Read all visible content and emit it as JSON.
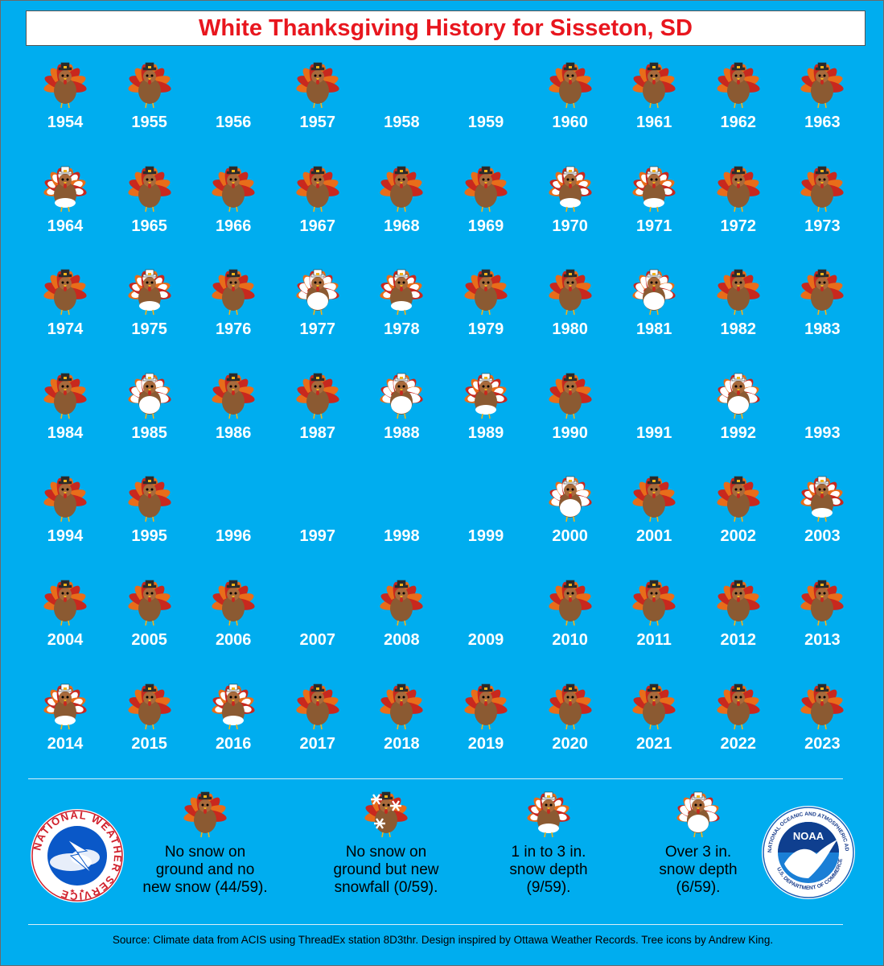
{
  "title": "White Thanksgiving History for Sisseton, SD",
  "years": [
    {
      "year": "1954",
      "cat": "none"
    },
    {
      "year": "1955",
      "cat": "none"
    },
    {
      "year": "1956",
      "cat": ""
    },
    {
      "year": "1957",
      "cat": "none"
    },
    {
      "year": "1958",
      "cat": ""
    },
    {
      "year": "1959",
      "cat": ""
    },
    {
      "year": "1960",
      "cat": "none"
    },
    {
      "year": "1961",
      "cat": "none"
    },
    {
      "year": "1962",
      "cat": "none"
    },
    {
      "year": "1963",
      "cat": "none"
    },
    {
      "year": "1964",
      "cat": "light"
    },
    {
      "year": "1965",
      "cat": "none"
    },
    {
      "year": "1966",
      "cat": "none"
    },
    {
      "year": "1967",
      "cat": "none"
    },
    {
      "year": "1968",
      "cat": "none"
    },
    {
      "year": "1969",
      "cat": "none"
    },
    {
      "year": "1970",
      "cat": "light"
    },
    {
      "year": "1971",
      "cat": "light"
    },
    {
      "year": "1972",
      "cat": "none"
    },
    {
      "year": "1973",
      "cat": "none"
    },
    {
      "year": "1974",
      "cat": "none"
    },
    {
      "year": "1975",
      "cat": "light"
    },
    {
      "year": "1976",
      "cat": "none"
    },
    {
      "year": "1977",
      "cat": "heavy"
    },
    {
      "year": "1978",
      "cat": "light"
    },
    {
      "year": "1979",
      "cat": "none"
    },
    {
      "year": "1980",
      "cat": "none"
    },
    {
      "year": "1981",
      "cat": "heavy"
    },
    {
      "year": "1982",
      "cat": "none"
    },
    {
      "year": "1983",
      "cat": "none"
    },
    {
      "year": "1984",
      "cat": "none"
    },
    {
      "year": "1985",
      "cat": "heavy"
    },
    {
      "year": "1986",
      "cat": "none"
    },
    {
      "year": "1987",
      "cat": "none"
    },
    {
      "year": "1988",
      "cat": "heavy"
    },
    {
      "year": "1989",
      "cat": "light"
    },
    {
      "year": "1990",
      "cat": "none"
    },
    {
      "year": "1991",
      "cat": ""
    },
    {
      "year": "1992",
      "cat": "heavy"
    },
    {
      "year": "1993",
      "cat": ""
    },
    {
      "year": "1994",
      "cat": "none"
    },
    {
      "year": "1995",
      "cat": "none"
    },
    {
      "year": "1996",
      "cat": ""
    },
    {
      "year": "1997",
      "cat": ""
    },
    {
      "year": "1998",
      "cat": ""
    },
    {
      "year": "1999",
      "cat": ""
    },
    {
      "year": "2000",
      "cat": "heavy"
    },
    {
      "year": "2001",
      "cat": "none"
    },
    {
      "year": "2002",
      "cat": "none"
    },
    {
      "year": "2003",
      "cat": "light"
    },
    {
      "year": "2004",
      "cat": "none"
    },
    {
      "year": "2005",
      "cat": "none"
    },
    {
      "year": "2006",
      "cat": "none"
    },
    {
      "year": "2007",
      "cat": ""
    },
    {
      "year": "2008",
      "cat": "none"
    },
    {
      "year": "2009",
      "cat": ""
    },
    {
      "year": "2010",
      "cat": "none"
    },
    {
      "year": "2011",
      "cat": "none"
    },
    {
      "year": "2012",
      "cat": "none"
    },
    {
      "year": "2013",
      "cat": "none"
    },
    {
      "year": "2014",
      "cat": "light"
    },
    {
      "year": "2015",
      "cat": "none"
    },
    {
      "year": "2016",
      "cat": "light"
    },
    {
      "year": "2017",
      "cat": "none"
    },
    {
      "year": "2018",
      "cat": "none"
    },
    {
      "year": "2019",
      "cat": "none"
    },
    {
      "year": "2020",
      "cat": "none"
    },
    {
      "year": "2021",
      "cat": "none"
    },
    {
      "year": "2022",
      "cat": "none"
    },
    {
      "year": "2023",
      "cat": "none"
    }
  ],
  "legend": [
    {
      "icon": "none",
      "lines": [
        "No snow on",
        "ground and no",
        "new snow (44/59)."
      ]
    },
    {
      "icon": "new",
      "lines": [
        "No snow on",
        "ground but new",
        "snowfall (0/59)."
      ]
    },
    {
      "icon": "light",
      "lines": [
        "1 in to 3 in.",
        "snow depth",
        "(9/59)."
      ]
    },
    {
      "icon": "heavy",
      "lines": [
        "Over 3 in.",
        "snow depth",
        "(6/59)."
      ]
    }
  ],
  "logos": {
    "nws": "NATIONAL WEATHER SERVICE",
    "noaa_center": "NOAA",
    "noaa_ring_top": "NATIONAL OCEANIC AND ATMOSPHERIC ADMINISTRATION",
    "noaa_ring_bottom": "U.S. DEPARTMENT OF COMMERCE"
  },
  "source": "Source: Climate data from ACIS using ThreadEx station 8D3thr. Design inspired by Ottawa Weather Records. Tree icons by Andrew King.",
  "colors": {
    "background": "#00adef",
    "title": "#e8161e",
    "snow": "#ffffff",
    "turkey_body": "#8b5a32",
    "feather_red": "#c8281e",
    "feather_orange": "#e86d1a"
  }
}
